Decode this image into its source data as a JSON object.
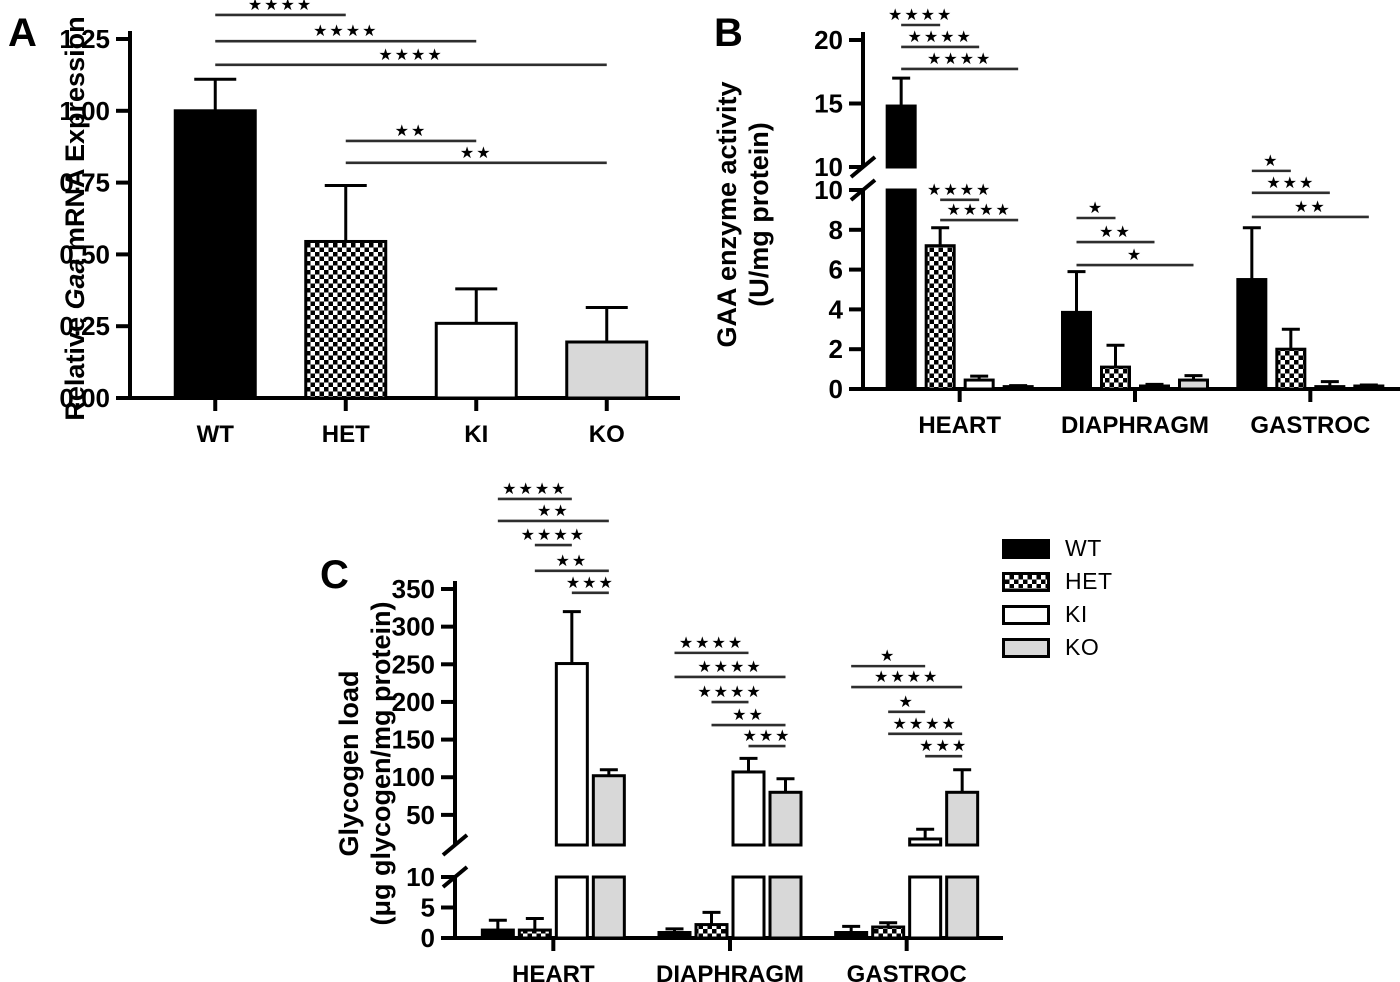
{
  "figure_title": "",
  "legend": {
    "position": "right-of-panel-C",
    "items": [
      {
        "label": "WT",
        "style": "WT"
      },
      {
        "label": "HET",
        "style": "HET"
      },
      {
        "label": "KI",
        "style": "KI"
      },
      {
        "label": "KO",
        "style": "KO"
      }
    ]
  },
  "colors": {
    "bar_black": "#000000",
    "bar_white": "#ffffff",
    "bar_gray": "#d8d8d8",
    "axis": "#000000",
    "sig_line": "#2e2e2e"
  },
  "chart_data": [
    {
      "panel": "A",
      "type": "bar",
      "title": "",
      "xlabel": "",
      "ylabel": "Relative Gaa mRNA Expression",
      "ylabel_lines": [
        [
          {
            "t": "Relative ",
            "i": false
          },
          {
            "t": "Gaa",
            "i": true
          },
          {
            "t": " mRNA Expression",
            "i": false
          }
        ]
      ],
      "y_axis": {
        "segments": [
          {
            "range": [
              0,
              1.25
            ],
            "ticks": [
              "0.00",
              "0.25",
              "0.50",
              "0.75",
              "1.00",
              "1.25"
            ]
          }
        ]
      },
      "categories": [
        "WT",
        "HET",
        "KI",
        "KO"
      ],
      "bars": [
        {
          "category": "WT",
          "style": "WT",
          "value": 1.0,
          "error": 0.11
        },
        {
          "category": "HET",
          "style": "HET",
          "value": 0.545,
          "error": 0.195
        },
        {
          "category": "KI",
          "style": "KI",
          "value": 0.26,
          "error": 0.12
        },
        {
          "category": "KO",
          "style": "KO",
          "value": 0.195,
          "error": 0.12
        }
      ],
      "significance": [
        {
          "x1": [
            0,
            0
          ],
          "x2": [
            1,
            0
          ],
          "stars": "****",
          "y": 1.067
        },
        {
          "x1": [
            0,
            0
          ],
          "x2": [
            2,
            0
          ],
          "stars": "****",
          "y": 0.994
        },
        {
          "x1": [
            0,
            0
          ],
          "x2": [
            3,
            0
          ],
          "stars": "****",
          "y": 0.928
        },
        {
          "x1": [
            1,
            0
          ],
          "x2": [
            2,
            0
          ],
          "stars": "**",
          "y": 0.716
        },
        {
          "x1": [
            1,
            0
          ],
          "x2": [
            3,
            0
          ],
          "stars": "**",
          "y": 0.655
        }
      ]
    },
    {
      "panel": "B",
      "type": "grouped-bar-broken-axis",
      "title": "",
      "xlabel": "",
      "ylabel": "GAA enzyme activity (U/mg protein)",
      "ylabel_lines": [
        [
          {
            "t": "GAA enzyme activity",
            "i": false
          }
        ],
        [
          {
            "t": "(U/mg protein)",
            "i": false
          }
        ]
      ],
      "y_axis": {
        "segments": [
          {
            "range": [
              0,
              10
            ],
            "ticks": [
              "0",
              "2",
              "4",
              "6",
              "8",
              "10"
            ]
          },
          {
            "range": [
              10,
              20
            ],
            "ticks": [
              "10",
              "15",
              "20"
            ]
          }
        ]
      },
      "categories": [
        "HEART",
        "DIAPHRAGM",
        "GASTROC"
      ],
      "series": [
        {
          "name": "WT",
          "values": [
            14.8,
            3.85,
            5.5
          ],
          "errors": [
            2.2,
            2.05,
            2.6
          ]
        },
        {
          "name": "HET",
          "values": [
            7.2,
            1.1,
            2.0
          ],
          "errors": [
            0.9,
            1.1,
            1.0
          ]
        },
        {
          "name": "KI",
          "values": [
            0.45,
            0.15,
            0.12
          ],
          "errors": [
            0.2,
            0.08,
            0.25
          ]
        },
        {
          "name": "KO",
          "values": [
            0.12,
            0.45,
            0.15
          ],
          "errors": [
            0.05,
            0.22,
            0.05
          ]
        }
      ],
      "significance": [
        {
          "x1": [
            0,
            0
          ],
          "x2": [
            0,
            1
          ],
          "stars": "****",
          "y": 1.043
        },
        {
          "x1": [
            0,
            0
          ],
          "x2": [
            0,
            2
          ],
          "stars": "****",
          "y": 0.98
        },
        {
          "x1": [
            0,
            0
          ],
          "x2": [
            0,
            3
          ],
          "stars": "****",
          "y": 0.917
        },
        {
          "x1": [
            0,
            1
          ],
          "x2": [
            0,
            2
          ],
          "stars": "****",
          "y": 0.542
        },
        {
          "x1": [
            0,
            1
          ],
          "x2": [
            0,
            3
          ],
          "stars": "****",
          "y": 0.484
        },
        {
          "x1": [
            1,
            0
          ],
          "x2": [
            1,
            1
          ],
          "stars": "*",
          "y": 0.49
        },
        {
          "x1": [
            1,
            0
          ],
          "x2": [
            1,
            2
          ],
          "stars": "**",
          "y": 0.421
        },
        {
          "x1": [
            1,
            0
          ],
          "x2": [
            1,
            3
          ],
          "stars": "*",
          "y": 0.355
        },
        {
          "x1": [
            2,
            0
          ],
          "x2": [
            2,
            1
          ],
          "stars": "*",
          "y": 0.625
        },
        {
          "x1": [
            2,
            0
          ],
          "x2": [
            2,
            2
          ],
          "stars": "***",
          "y": 0.562
        },
        {
          "x1": [
            2,
            0
          ],
          "x2": [
            2,
            3
          ],
          "stars": "**",
          "y": 0.493
        }
      ]
    },
    {
      "panel": "C",
      "type": "grouped-bar-broken-axis",
      "title": "",
      "xlabel": "",
      "ylabel": "Glycogen load (μg glycogen/mg protein)",
      "ylabel_lines": [
        [
          {
            "t": "Glycogen load",
            "i": false
          }
        ],
        [
          {
            "t": "(μg glycogen/mg protein)",
            "i": false
          }
        ]
      ],
      "y_axis": {
        "segments": [
          {
            "range": [
              0,
              10
            ],
            "ticks": [
              "0",
              "5",
              "10"
            ]
          },
          {
            "range": [
              10,
              350
            ],
            "ticks": [
              "50",
              "100",
              "150",
              "200",
              "250",
              "300",
              "350"
            ]
          }
        ]
      },
      "categories": [
        "HEART",
        "DIAPHRAGM",
        "GASTROC"
      ],
      "series": [
        {
          "name": "WT",
          "values": [
            1.3,
            0.9,
            0.9
          ],
          "errors": [
            1.6,
            0.6,
            1.0
          ]
        },
        {
          "name": "HET",
          "values": [
            1.3,
            2.2,
            1.8
          ],
          "errors": [
            1.9,
            2.0,
            0.7
          ]
        },
        {
          "name": "KI",
          "values": [
            251,
            107,
            18
          ],
          "errors": [
            69,
            18,
            13
          ]
        },
        {
          "name": "KO",
          "values": [
            102,
            80,
            80
          ],
          "errors": [
            8,
            18,
            30
          ]
        }
      ],
      "significance": [
        {
          "x1": [
            0,
            0
          ],
          "x2": [
            0,
            2
          ],
          "stars": "****",
          "y": 1.258
        },
        {
          "x1": [
            0,
            0
          ],
          "x2": [
            0,
            3
          ],
          "stars": "**",
          "y": 1.195
        },
        {
          "x1": [
            0,
            1
          ],
          "x2": [
            0,
            2
          ],
          "stars": "****",
          "y": 1.126
        },
        {
          "x1": [
            0,
            1
          ],
          "x2": [
            0,
            3
          ],
          "stars": "**",
          "y": 1.052
        },
        {
          "x1": [
            0,
            2
          ],
          "x2": [
            0,
            3
          ],
          "stars": "***",
          "y": 0.989
        },
        {
          "x1": [
            1,
            0
          ],
          "x2": [
            1,
            2
          ],
          "stars": "****",
          "y": 0.817
        },
        {
          "x1": [
            1,
            0
          ],
          "x2": [
            1,
            3
          ],
          "stars": "****",
          "y": 0.748
        },
        {
          "x1": [
            1,
            1
          ],
          "x2": [
            1,
            2
          ],
          "stars": "****",
          "y": 0.676
        },
        {
          "x1": [
            1,
            1
          ],
          "x2": [
            1,
            3
          ],
          "stars": "**",
          "y": 0.61
        },
        {
          "x1": [
            1,
            2
          ],
          "x2": [
            1,
            3
          ],
          "stars": "***",
          "y": 0.55
        },
        {
          "x1": [
            2,
            0
          ],
          "x2": [
            2,
            2
          ],
          "stars": "*",
          "y": 0.779
        },
        {
          "x1": [
            2,
            0
          ],
          "x2": [
            2,
            3
          ],
          "stars": "****",
          "y": 0.719
        },
        {
          "x1": [
            2,
            1
          ],
          "x2": [
            2,
            2
          ],
          "stars": "*",
          "y": 0.648
        },
        {
          "x1": [
            2,
            1
          ],
          "x2": [
            2,
            3
          ],
          "stars": "****",
          "y": 0.585
        },
        {
          "x1": [
            2,
            2
          ],
          "x2": [
            2,
            3
          ],
          "stars": "***",
          "y": 0.521
        }
      ]
    }
  ]
}
